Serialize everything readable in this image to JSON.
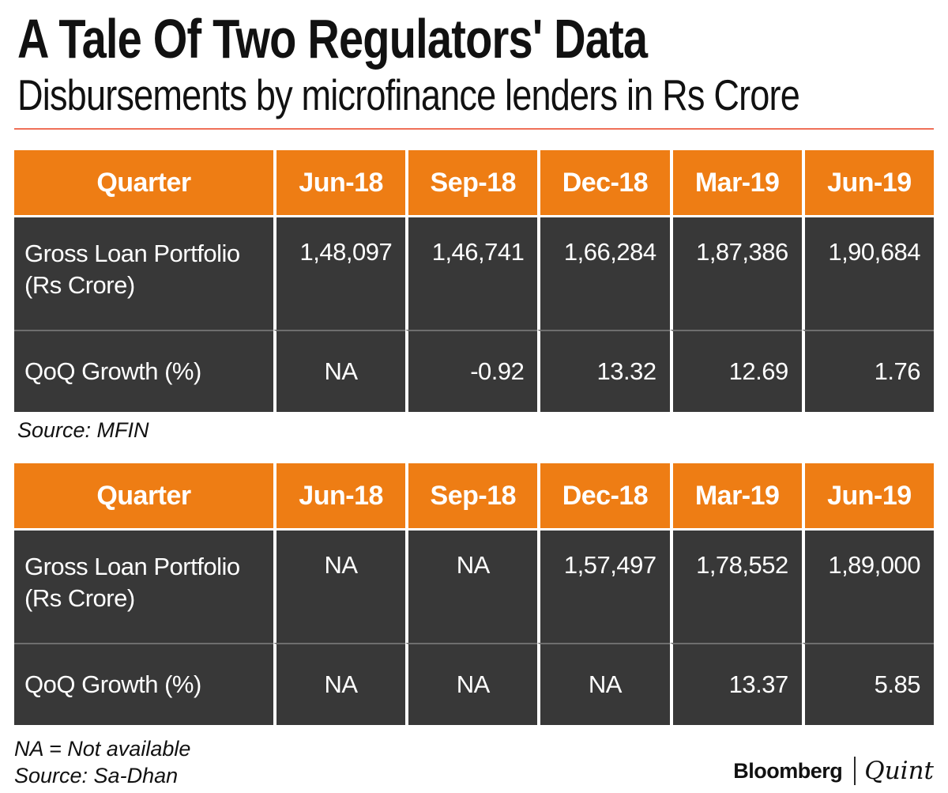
{
  "page": {
    "title": "A Tale Of Two Regulators' Data",
    "subtitle": "Disbursements by microfinance lenders in Rs Crore"
  },
  "colors": {
    "header_orange": "#ee7d14",
    "cell_dark": "#383838",
    "rule_salmon": "#ef7058",
    "row_divider_gray": "#6e6e6e",
    "text_white": "#ffffff",
    "text_black": "#111111"
  },
  "chart_data": [
    {
      "type": "table",
      "source_note": "Source: MFIN",
      "columns": [
        "Quarter",
        "Jun-18",
        "Sep-18",
        "Dec-18",
        "Mar-19",
        "Jun-19"
      ],
      "rows": [
        {
          "label": "Gross Loan Portfolio (Rs Crore)",
          "label_lines": [
            "Gross Loan Portfolio",
            "(Rs Crore)"
          ],
          "values": [
            "1,48,097",
            "1,46,741",
            "1,66,284",
            "1,87,386",
            "1,90,684"
          ]
        },
        {
          "label": "QoQ Growth (%)",
          "label_lines": [
            "QoQ Growth (%)"
          ],
          "values": [
            "NA",
            "-0.92",
            "13.32",
            "12.69",
            "1.76"
          ]
        }
      ]
    },
    {
      "type": "table",
      "source_note": "Source: Sa-Dhan",
      "columns": [
        "Quarter",
        "Jun-18",
        "Sep-18",
        "Dec-18",
        "Mar-19",
        "Jun-19"
      ],
      "rows": [
        {
          "label": "Gross Loan Portfolio (Rs Crore)",
          "label_lines": [
            "Gross Loan Portfolio",
            "(Rs Crore)"
          ],
          "values": [
            "NA",
            "NA",
            "1,57,497",
            "1,78,552",
            "1,89,000"
          ]
        },
        {
          "label": "QoQ Growth (%)",
          "label_lines": [
            "QoQ Growth (%)"
          ],
          "values": [
            "NA",
            "NA",
            "NA",
            "13.37",
            "5.85"
          ]
        }
      ]
    }
  ],
  "footnotes": {
    "na_note": "NA = Not available"
  },
  "branding": {
    "bloomberg": "Bloomberg",
    "quint": "Quint"
  }
}
